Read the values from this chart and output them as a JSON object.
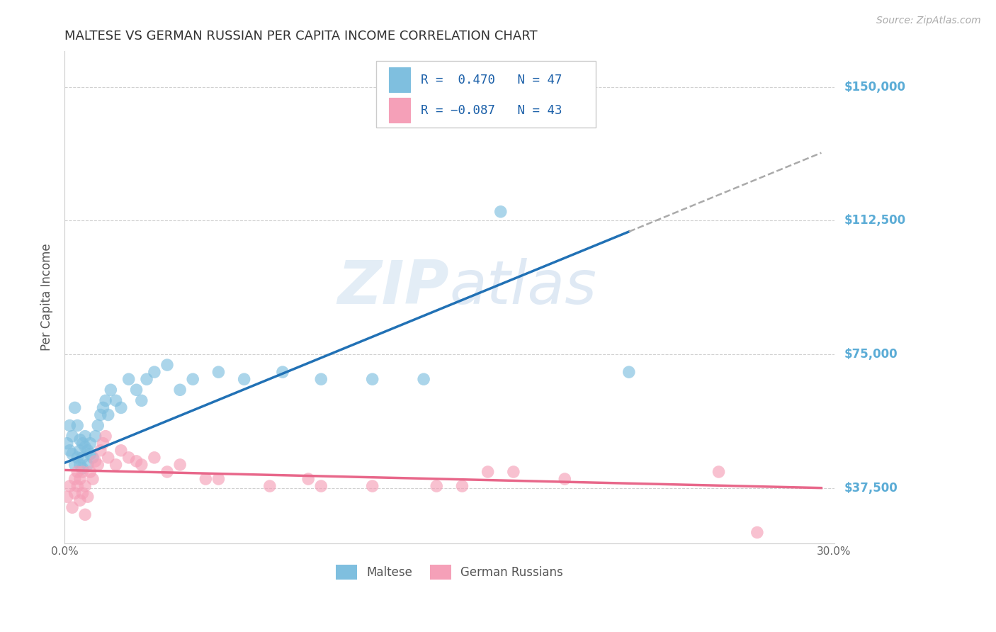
{
  "title": "MALTESE VS GERMAN RUSSIAN PER CAPITA INCOME CORRELATION CHART",
  "source": "Source: ZipAtlas.com",
  "ylabel": "Per Capita Income",
  "xlim": [
    0.0,
    0.3
  ],
  "ylim": [
    22000,
    160000
  ],
  "yticks": [
    37500,
    75000,
    112500,
    150000
  ],
  "ytick_labels": [
    "$37,500",
    "$75,000",
    "$112,500",
    "$150,000"
  ],
  "xticks": [
    0.0,
    0.05,
    0.1,
    0.15,
    0.2,
    0.25,
    0.3
  ],
  "xtick_labels": [
    "0.0%",
    "",
    "",
    "",
    "",
    "",
    "30.0%"
  ],
  "watermark": "ZIPatlas",
  "blue_color": "#7fbfdf",
  "pink_color": "#f5a0b8",
  "blue_line_color": "#2171b5",
  "pink_line_color": "#e8678a",
  "right_label_color": "#5bacd6",
  "legend_R_color": "#1a5fa8",
  "background_color": "#ffffff",
  "grid_color": "#cccccc",
  "title_color": "#333333",
  "blue_x": [
    0.001,
    0.002,
    0.002,
    0.003,
    0.003,
    0.004,
    0.004,
    0.005,
    0.005,
    0.006,
    0.006,
    0.006,
    0.007,
    0.007,
    0.007,
    0.008,
    0.008,
    0.009,
    0.009,
    0.01,
    0.01,
    0.011,
    0.012,
    0.013,
    0.014,
    0.015,
    0.016,
    0.017,
    0.018,
    0.02,
    0.022,
    0.025,
    0.028,
    0.03,
    0.032,
    0.035,
    0.04,
    0.045,
    0.05,
    0.06,
    0.07,
    0.085,
    0.1,
    0.12,
    0.14,
    0.17,
    0.22
  ],
  "blue_y": [
    50000,
    55000,
    48000,
    52000,
    47000,
    44000,
    60000,
    46000,
    55000,
    48000,
    51000,
    44000,
    50000,
    46000,
    43000,
    49000,
    52000,
    48000,
    44000,
    50000,
    47000,
    46000,
    52000,
    55000,
    58000,
    60000,
    62000,
    58000,
    65000,
    62000,
    60000,
    68000,
    65000,
    62000,
    68000,
    70000,
    72000,
    65000,
    68000,
    70000,
    68000,
    70000,
    68000,
    68000,
    68000,
    115000,
    70000
  ],
  "pink_x": [
    0.001,
    0.002,
    0.003,
    0.004,
    0.004,
    0.005,
    0.005,
    0.006,
    0.006,
    0.007,
    0.007,
    0.008,
    0.008,
    0.009,
    0.01,
    0.011,
    0.012,
    0.013,
    0.014,
    0.015,
    0.016,
    0.017,
    0.02,
    0.022,
    0.025,
    0.028,
    0.03,
    0.035,
    0.04,
    0.045,
    0.055,
    0.06,
    0.08,
    0.095,
    0.1,
    0.12,
    0.145,
    0.155,
    0.165,
    0.175,
    0.195,
    0.255,
    0.27
  ],
  "pink_y": [
    35000,
    38000,
    32000,
    40000,
    36000,
    38000,
    42000,
    40000,
    34000,
    36000,
    42000,
    38000,
    30000,
    35000,
    42000,
    40000,
    45000,
    44000,
    48000,
    50000,
    52000,
    46000,
    44000,
    48000,
    46000,
    45000,
    44000,
    46000,
    42000,
    44000,
    40000,
    40000,
    38000,
    40000,
    38000,
    38000,
    38000,
    38000,
    42000,
    42000,
    40000,
    42000,
    25000
  ],
  "blue_line_x0": 0.0,
  "blue_line_x_solid_end": 0.22,
  "blue_line_x_dashed_end": 0.295,
  "blue_line_y0": 44500,
  "blue_line_slope": 295000,
  "pink_line_x0": 0.0,
  "pink_line_x1": 0.295,
  "pink_line_y0": 42500,
  "pink_line_slope": -17000
}
